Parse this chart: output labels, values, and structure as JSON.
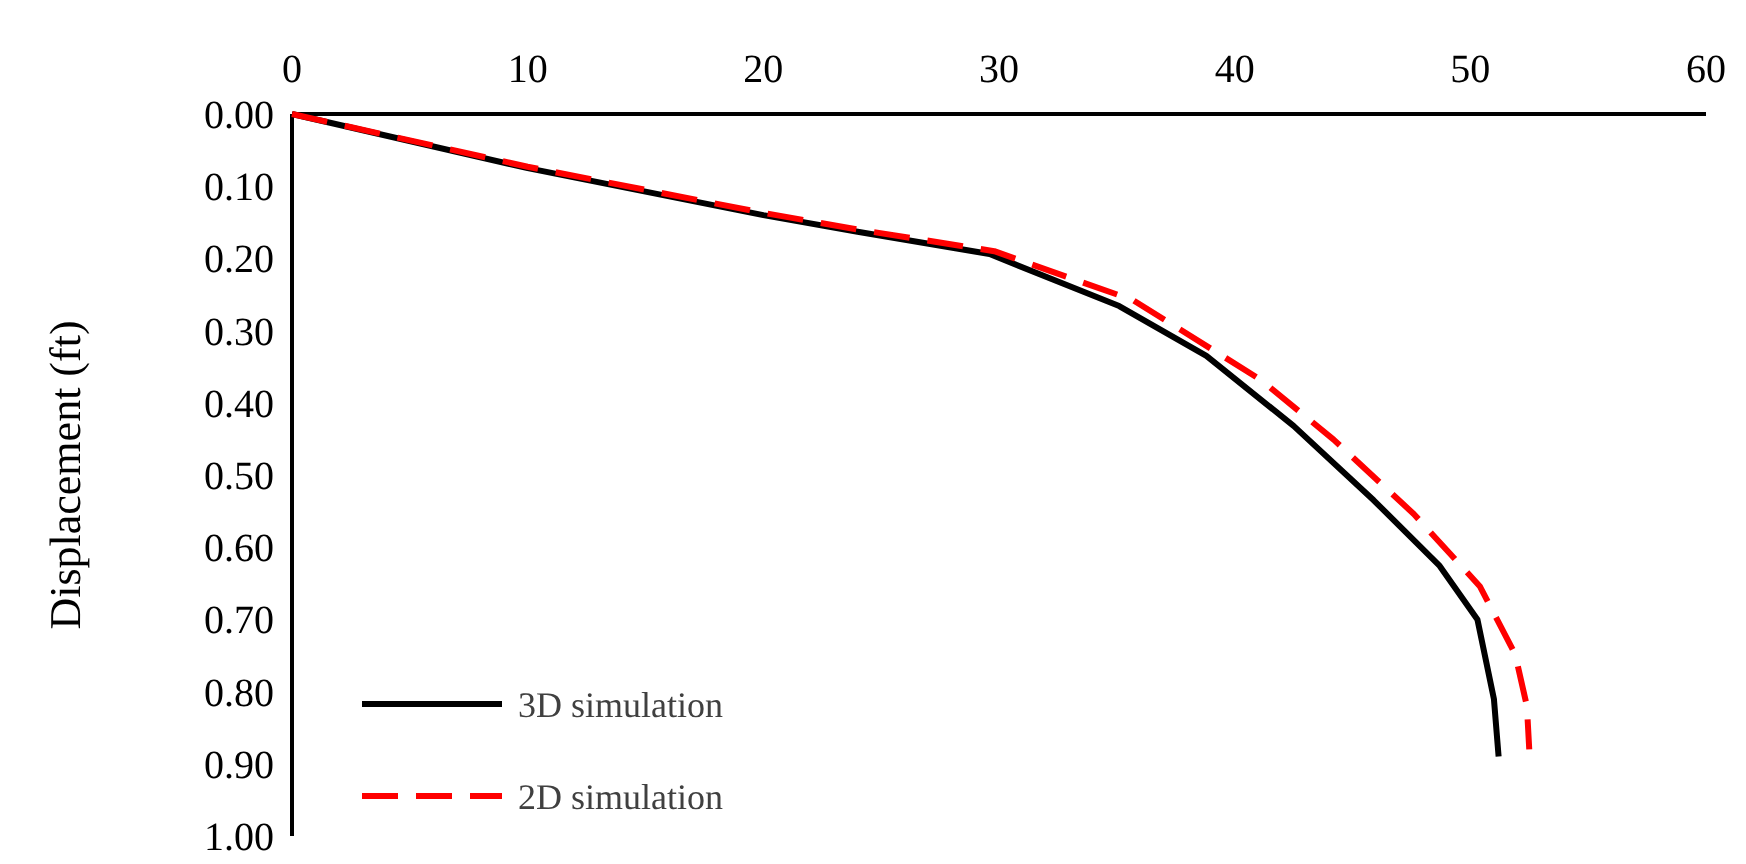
{
  "chart_data": {
    "type": "line",
    "ylabel": "Displacement (ft)",
    "xlim": [
      0,
      60
    ],
    "xticks": [
      0,
      10,
      20,
      30,
      40,
      50,
      60
    ],
    "ylim": [
      1,
      0
    ],
    "yticks": [
      {
        "value": 0,
        "label": "0.00"
      },
      {
        "value": 0.1,
        "label": "0.10"
      },
      {
        "value": 0.2,
        "label": "0.20"
      },
      {
        "value": 0.3,
        "label": "0.30"
      },
      {
        "value": 0.4,
        "label": "0.40"
      },
      {
        "value": 0.5,
        "label": "0.50"
      },
      {
        "value": 0.6,
        "label": "0.60"
      },
      {
        "value": 0.7,
        "label": "0.70"
      },
      {
        "value": 0.8,
        "label": "0.80"
      },
      {
        "value": 0.9,
        "label": "0.90"
      },
      {
        "value": 1,
        "label": "1.00"
      }
    ],
    "legend": "bottom left",
    "grid": false,
    "series": [
      {
        "name": "3D simulation",
        "color": "#000000",
        "line_style": "solid",
        "x": [
          0,
          10,
          20,
          24,
          29.6,
          35.1,
          38.8,
          42.5,
          45.9,
          48.7,
          50.3,
          51.0,
          51.2
        ],
        "values": [
          0,
          0.075,
          0.14,
          0.163,
          0.194,
          0.266,
          0.335,
          0.432,
          0.535,
          0.626,
          0.7,
          0.81,
          0.89
        ]
      },
      {
        "name": "2D simulation",
        "color": "#ff0000",
        "line_style": "dashed",
        "x": [
          0,
          10,
          20,
          24,
          29.8,
          35.7,
          41.1,
          44.2,
          47.6,
          50.4,
          51.9,
          52.4,
          52.5
        ],
        "values": [
          0,
          0.073,
          0.137,
          0.16,
          0.19,
          0.258,
          0.368,
          0.451,
          0.554,
          0.654,
          0.748,
          0.82,
          0.88
        ]
      }
    ]
  }
}
